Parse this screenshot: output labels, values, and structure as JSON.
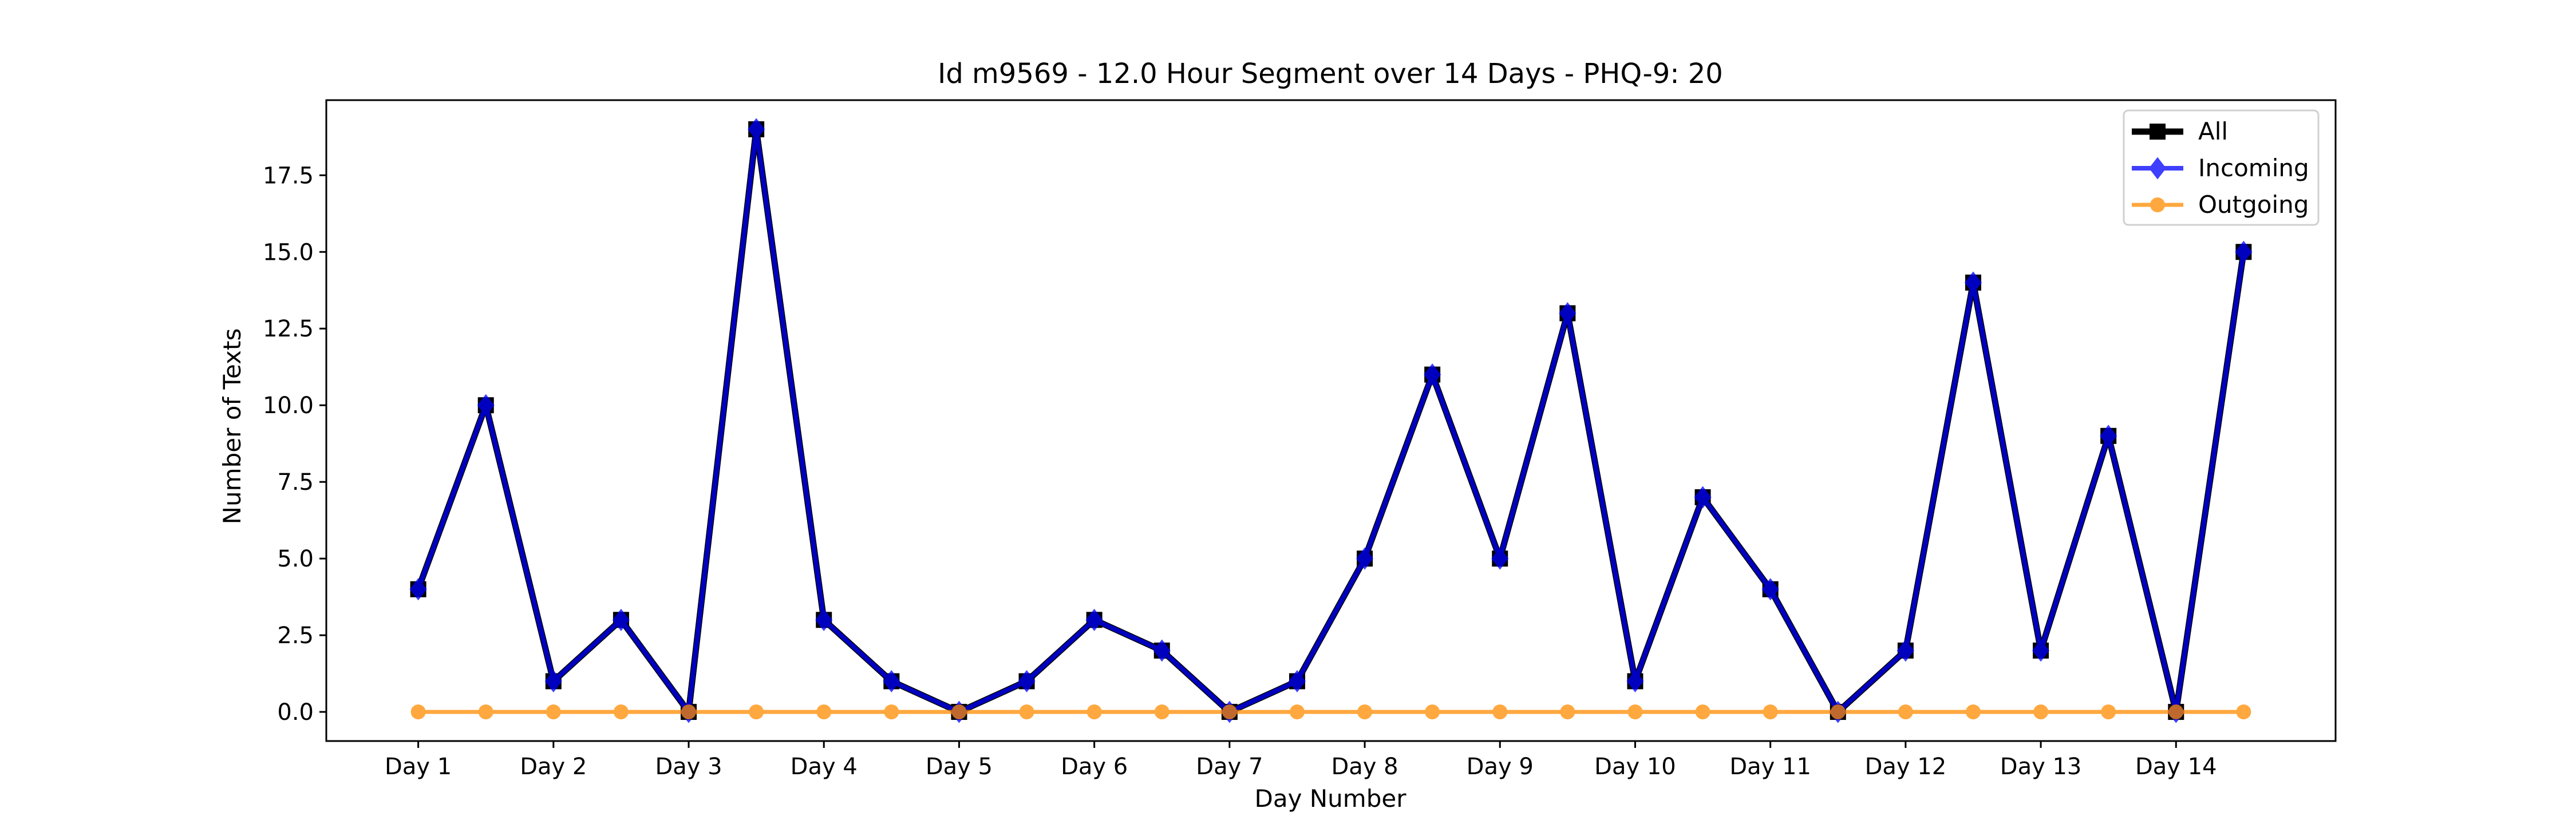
{
  "chart_data": {
    "type": "line",
    "title": "Id m9569 - 12.0 Hour Segment over 14 Days - PHQ-9: 20",
    "xlabel": "Day Number",
    "ylabel": "Number of Texts",
    "x_tick_labels": [
      "Day 1",
      "Day 2",
      "Day 3",
      "Day 4",
      "Day 5",
      "Day 6",
      "Day 7",
      "Day 8",
      "Day 9",
      "Day 10",
      "Day 11",
      "Day 12",
      "Day 13",
      "Day 14"
    ],
    "y_tick_labels": [
      "0.0",
      "2.5",
      "5.0",
      "7.5",
      "10.0",
      "12.5",
      "15.0",
      "17.5"
    ],
    "ylim": [
      -0.95,
      19.95
    ],
    "grid": false,
    "legend_position": "top-right",
    "x": [
      1,
      1.5,
      2,
      2.5,
      3,
      3.5,
      4,
      4.5,
      5,
      5.5,
      6,
      6.5,
      7,
      7.5,
      8,
      8.5,
      9,
      9.5,
      10,
      10.5,
      11,
      11.5,
      12,
      12.5,
      13,
      13.5,
      14,
      14.5
    ],
    "series": [
      {
        "name": "All",
        "color": "#000000",
        "marker": "square",
        "values": [
          4,
          10,
          1,
          3,
          0,
          19,
          3,
          1,
          0,
          1,
          3,
          2,
          0,
          1,
          5,
          11,
          5,
          13,
          1,
          7,
          4,
          0,
          2,
          14,
          2,
          9,
          0,
          15
        ]
      },
      {
        "name": "Incoming",
        "color": "#0000ff",
        "marker": "diamond",
        "values": [
          4,
          10,
          1,
          3,
          0,
          19,
          3,
          1,
          0,
          1,
          3,
          2,
          0,
          1,
          5,
          11,
          5,
          13,
          1,
          7,
          4,
          0,
          2,
          14,
          2,
          9,
          0,
          15
        ]
      },
      {
        "name": "Outgoing",
        "color": "#ff8c00",
        "marker": "circle",
        "values": [
          0,
          0,
          0,
          0,
          0,
          0,
          0,
          0,
          0,
          0,
          0,
          0,
          0,
          0,
          0,
          0,
          0,
          0,
          0,
          0,
          0,
          0,
          0,
          0,
          0,
          0,
          0,
          0
        ]
      }
    ]
  }
}
